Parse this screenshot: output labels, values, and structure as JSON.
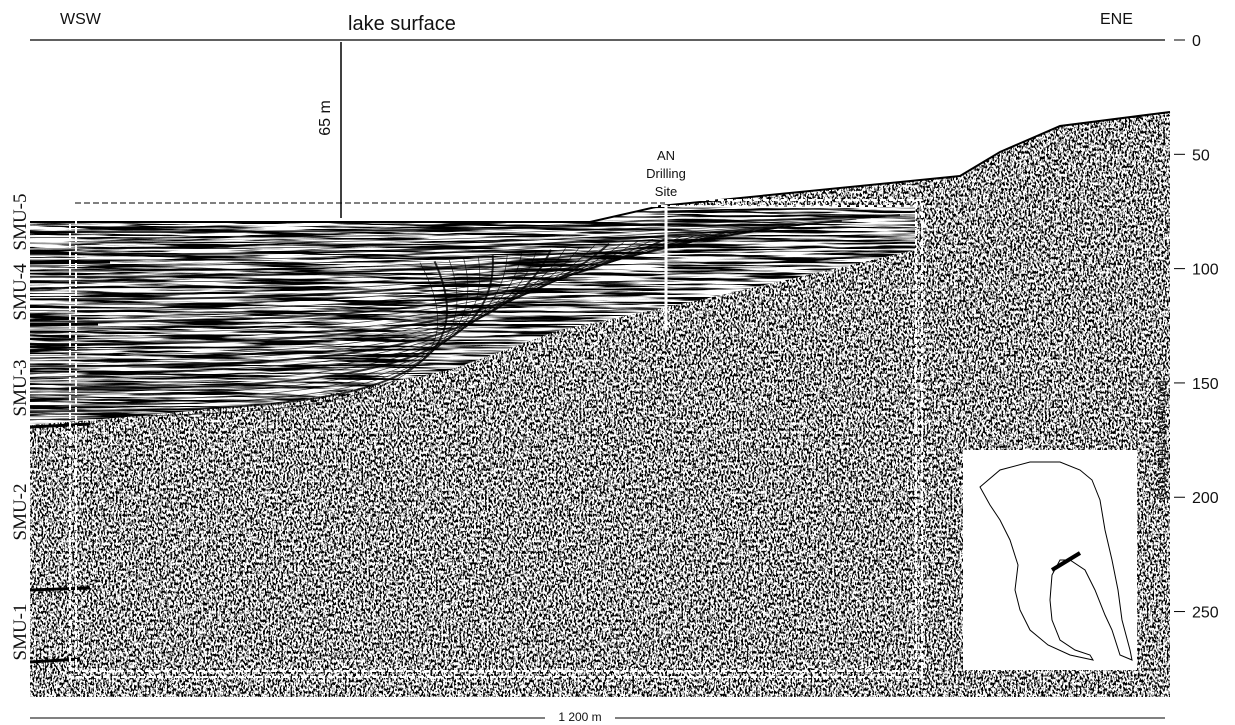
{
  "labels": {
    "west": "WSW",
    "east": "ENE",
    "lake_surface": "lake surface",
    "water_depth": "65 m",
    "drilling_site": [
      "AN",
      "Drilling",
      "Site"
    ],
    "scale_bar": "1 200 m"
  },
  "units": [
    "SMU-5",
    "SMU-4",
    "SMU-3",
    "SMU-2",
    "SMU-1"
  ],
  "time_axis": {
    "label": "two ways time (ms)",
    "range": [
      0,
      290
    ],
    "ticks": [
      0,
      50,
      100,
      150,
      200,
      250
    ]
  }
}
